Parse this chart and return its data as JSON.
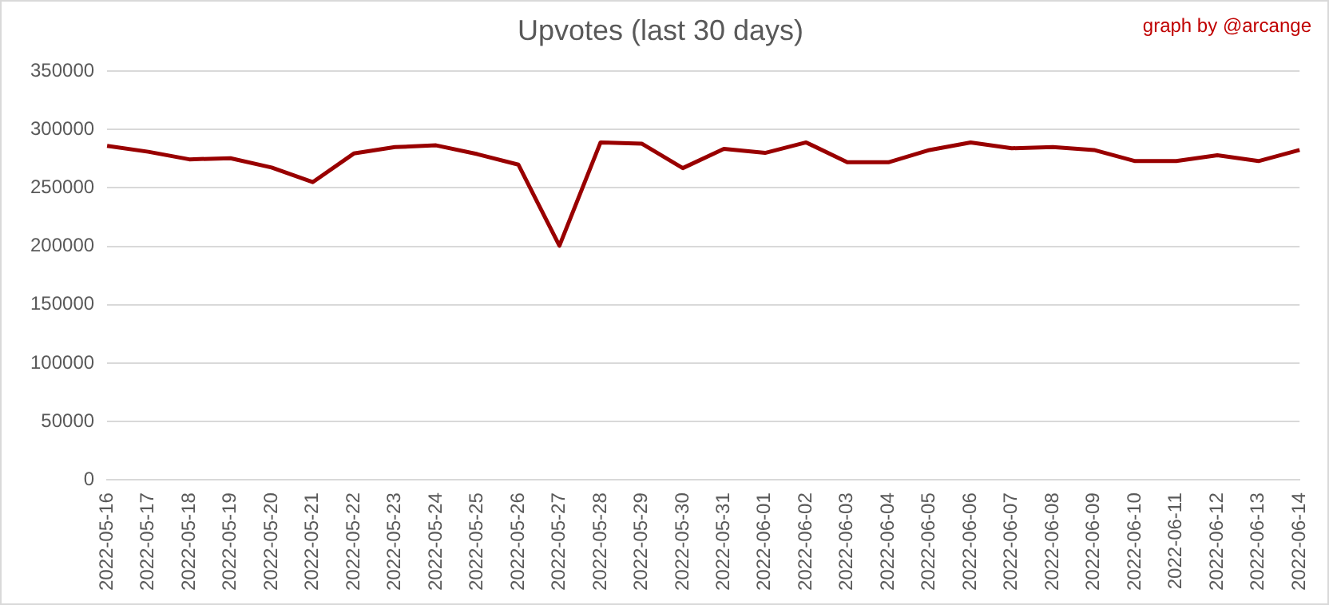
{
  "chart_data": {
    "type": "line",
    "title": "Upvotes (last 30 days)",
    "annotations": [
      "graph by @arcange"
    ],
    "categories": [
      "2022-05-16",
      "2022-05-17",
      "2022-05-18",
      "2022-05-19",
      "2022-05-20",
      "2022-05-21",
      "2022-05-22",
      "2022-05-23",
      "2022-05-24",
      "2022-05-25",
      "2022-05-26",
      "2022-05-27",
      "2022-05-28",
      "2022-05-29",
      "2022-05-30",
      "2022-05-31",
      "2022-06-01",
      "2022-06-02",
      "2022-06-03",
      "2022-06-04",
      "2022-06-05",
      "2022-06-06",
      "2022-06-07",
      "2022-06-08",
      "2022-06-09",
      "2022-06-10",
      "2022-06-11",
      "2022-06-12",
      "2022-06-13",
      "2022-06-14"
    ],
    "series": [
      {
        "color": "#990000",
        "values": [
          286000,
          281000,
          274500,
          275500,
          267500,
          255000,
          279500,
          285000,
          286500,
          279000,
          270000,
          200500,
          289000,
          288000,
          267000,
          283500,
          280000,
          289000,
          272000,
          272000,
          282500,
          289000,
          284000,
          285000,
          282500,
          273000,
          273000,
          278000,
          273000,
          282500
        ]
      }
    ],
    "ylim": [
      0,
      350000
    ],
    "yticks": [
      0,
      50000,
      100000,
      150000,
      200000,
      250000,
      300000,
      350000
    ],
    "grid": "y",
    "legend": false,
    "marker": "none",
    "line_style": "solid"
  }
}
